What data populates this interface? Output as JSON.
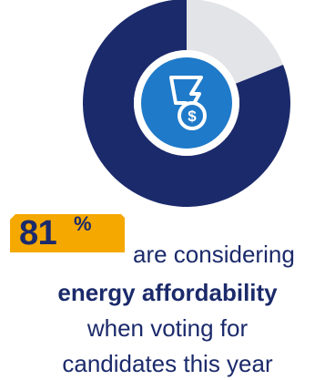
{
  "chart_data": {
    "type": "pie",
    "variant": "donut",
    "slices": [
      {
        "label": "",
        "value": 81,
        "color": "#1b2a6b"
      },
      {
        "label": "",
        "value": 19,
        "color": "#e3e4e8"
      }
    ],
    "center_icon": "lightning-dollar-icon",
    "accent_colors": {
      "inner_ring": "#ffffff",
      "icon_circle": "#1f7ac9",
      "tag": "#f5a800"
    }
  },
  "stat": {
    "value": "81",
    "unit": "%",
    "text_line1": "are considering",
    "text_line2": "energy affordability",
    "text_line3": "when voting for",
    "text_line4": "candidates this year"
  }
}
